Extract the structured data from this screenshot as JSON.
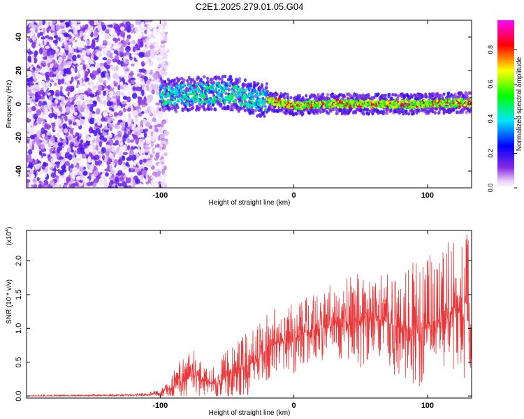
{
  "title": "C2E1.2025.279.01.05.G04",
  "chart_data": [
    {
      "type": "heatmap",
      "title": "C2E1.2025.279.01.05.G04",
      "xlabel": "Height of straight line (km)",
      "ylabel": "Frequency (Hz)",
      "xlim": [
        -200,
        133
      ],
      "ylim": [
        -50,
        50
      ],
      "xticks": [
        -100,
        0,
        100
      ],
      "xtick_labels": [
        "-100",
        "0",
        "100"
      ],
      "yticks": [
        -40,
        -20,
        0,
        20,
        40
      ],
      "ytick_labels": [
        "-40",
        "-20",
        "0",
        "20",
        "40"
      ],
      "colorbar": {
        "label": "Normalized spectral amplitude",
        "range": [
          0,
          0.97
        ],
        "ticks": [
          0.0,
          0.2,
          0.4,
          0.6,
          0.8
        ],
        "tick_labels": [
          "0.0",
          "0.2",
          "0.4",
          "0.6",
          "0.8"
        ],
        "colormap": "rainbow (white-violet-blue-cyan-green-yellow-red-magenta)"
      },
      "features": [
        {
          "region": "noise",
          "x_range": [
            -200,
            -95
          ],
          "frequency_range": [
            -50,
            50
          ],
          "amplitude_range": [
            0.0,
            0.2
          ]
        },
        {
          "region": "signal_track",
          "x_range": [
            -100,
            133
          ],
          "center_frequency_hz": [
            [
              -100,
              5
            ],
            [
              -75,
              6
            ],
            [
              -50,
              7
            ],
            [
              -30,
              3
            ],
            [
              -10,
              1
            ],
            [
              0,
              -1
            ],
            [
              20,
              0
            ],
            [
              60,
              0
            ],
            [
              100,
              0
            ],
            [
              133,
              1
            ]
          ],
          "amplitude_range": [
            0.2,
            0.97
          ]
        }
      ]
    },
    {
      "type": "line",
      "xlabel": "Height of straight line (km)",
      "ylabel": "SNR (10 * v/v)",
      "scale_label": "(x10",
      "scale_exponent": "4",
      "xlim": [
        -200,
        133
      ],
      "ylim": [
        -0.03,
        2.45
      ],
      "xticks": [
        -100,
        0,
        100
      ],
      "xtick_labels": [
        "-100",
        "0",
        "100"
      ],
      "yticks": [
        0.0,
        0.5,
        1.0,
        1.5,
        2.0
      ],
      "ytick_labels": [
        "0.0",
        "0.5",
        "1.0",
        "1.5",
        "2.0"
      ],
      "series": [
        {
          "name": "SNR",
          "color": "#e8383a",
          "x": [
            -200,
            -180,
            -160,
            -140,
            -120,
            -110,
            -100,
            -95,
            -90,
            -85,
            -80,
            -75,
            -70,
            -65,
            -60,
            -55,
            -50,
            -45,
            -40,
            -35,
            -30,
            -25,
            -20,
            -15,
            -10,
            -5,
            0,
            5,
            10,
            20,
            30,
            40,
            50,
            60,
            70,
            80,
            90,
            100,
            105,
            110,
            115,
            120,
            125,
            130,
            133
          ],
          "mean": [
            0.0,
            0.0,
            0.005,
            0.01,
            0.015,
            0.02,
            0.03,
            0.07,
            0.15,
            0.2,
            0.25,
            0.3,
            0.25,
            0.22,
            0.18,
            0.2,
            0.3,
            0.35,
            0.4,
            0.45,
            0.5,
            0.6,
            0.7,
            0.75,
            0.8,
            0.82,
            0.85,
            0.9,
            0.95,
            1.0,
            1.05,
            1.1,
            1.1,
            1.15,
            1.1,
            1.0,
            1.0,
            1.0,
            1.1,
            1.15,
            1.2,
            1.3,
            1.2,
            1.1,
            1.0
          ],
          "peak": [
            0.01,
            0.02,
            0.02,
            0.03,
            0.04,
            0.06,
            0.1,
            0.2,
            0.45,
            0.55,
            0.62,
            0.68,
            0.6,
            0.5,
            0.45,
            0.55,
            0.75,
            0.8,
            0.9,
            0.95,
            1.05,
            1.1,
            1.25,
            1.4,
            1.3,
            1.35,
            1.45,
            1.4,
            1.5,
            1.55,
            1.7,
            1.8,
            1.9,
            1.85,
            1.85,
            1.9,
            2.0,
            2.05,
            2.15,
            2.2,
            2.3,
            2.3,
            2.2,
            2.45,
            1.6
          ]
        }
      ]
    }
  ]
}
